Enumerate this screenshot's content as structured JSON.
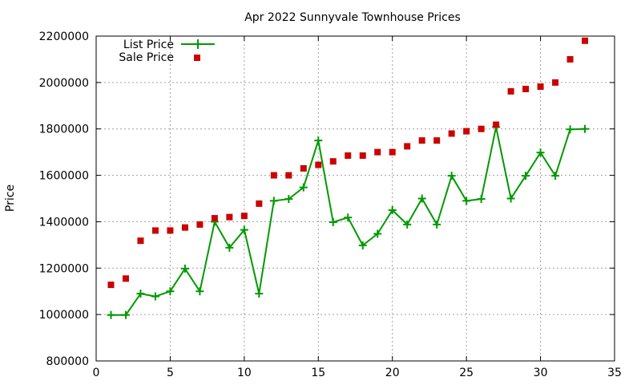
{
  "chart_data": {
    "type": "line",
    "title": "Apr 2022 Sunnyvale Townhouse Prices",
    "xlabel": "",
    "ylabel": "Price",
    "xlim": [
      0,
      35
    ],
    "ylim": [
      800000,
      2200000
    ],
    "xticks": [
      0,
      5,
      10,
      15,
      20,
      25,
      30,
      35
    ],
    "yticks": [
      800000,
      1000000,
      1200000,
      1400000,
      1600000,
      1800000,
      2000000,
      2200000
    ],
    "grid": true,
    "legend_position": "top-left",
    "x": [
      1,
      2,
      3,
      4,
      5,
      6,
      7,
      8,
      9,
      10,
      11,
      12,
      13,
      14,
      15,
      16,
      17,
      18,
      19,
      20,
      21,
      22,
      23,
      24,
      25,
      26,
      27,
      28,
      29,
      30,
      31,
      32,
      33
    ],
    "series": [
      {
        "name": "List Price",
        "style": "line-with-plus",
        "color": "#009900",
        "values": [
          998000,
          998000,
          1090000,
          1078000,
          1100000,
          1198000,
          1100000,
          1400000,
          1288000,
          1365000,
          1090000,
          1490000,
          1498000,
          1548000,
          1750000,
          1398000,
          1418000,
          1298000,
          1348000,
          1450000,
          1388000,
          1500000,
          1388000,
          1598000,
          1490000,
          1498000,
          1808000,
          1500000,
          1598000,
          1698000,
          1598000,
          1798000,
          1800000
        ]
      },
      {
        "name": "Sale Price",
        "style": "square-markers",
        "color": "#cc0000",
        "values": [
          1128000,
          1155000,
          1318000,
          1362000,
          1362000,
          1375000,
          1388000,
          1415000,
          1420000,
          1425000,
          1478000,
          1600000,
          1600000,
          1630000,
          1645000,
          1660000,
          1685000,
          1685000,
          1700000,
          1700000,
          1725000,
          1750000,
          1750000,
          1780000,
          1790000,
          1800000,
          1818000,
          1962000,
          1972000,
          1982000,
          2000000,
          2100000,
          2180000
        ]
      }
    ]
  }
}
